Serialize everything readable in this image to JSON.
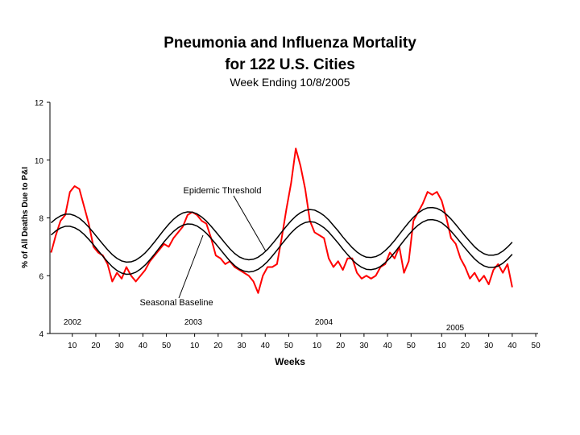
{
  "chart_data": {
    "type": "line",
    "title": [
      "Pneumonia and Influenza Mortality",
      "for 122 U.S. Cities"
    ],
    "subtitle": "Week Ending 10/8/2005",
    "x_label": "Weeks",
    "y_label": "% of All Deaths Due to P&I",
    "year_labels": [
      "2002",
      "2003",
      "2004",
      "2005"
    ],
    "x": [
      1,
      3,
      5,
      7,
      9,
      11,
      13,
      15,
      17,
      19,
      21,
      23,
      25,
      27,
      29,
      31,
      33,
      35,
      37,
      39,
      41,
      43,
      45,
      47,
      49,
      51,
      53,
      55,
      57,
      59,
      61,
      63,
      65,
      67,
      69,
      71,
      73,
      75,
      77,
      79,
      81,
      83,
      85,
      87,
      89,
      91,
      93,
      95,
      97,
      99,
      101,
      103,
      105,
      107,
      109,
      111,
      113,
      115,
      117,
      119,
      121,
      123,
      125,
      127,
      129,
      131,
      133,
      135,
      137,
      139,
      141,
      143,
      145,
      147,
      149,
      151,
      153,
      155,
      157,
      159,
      161,
      163,
      165,
      167,
      169,
      171,
      173,
      175,
      177,
      179,
      181,
      183,
      185,
      187,
      189,
      191,
      193,
      195,
      197
    ],
    "series": [
      {
        "color": "#ff0000",
        "values": [
          6.8,
          7.4,
          7.9,
          8.1,
          8.9,
          9.1,
          9.0,
          8.4,
          7.8,
          7.0,
          6.8,
          6.7,
          6.4,
          5.8,
          6.1,
          5.9,
          6.3,
          6.0,
          5.8,
          6.0,
          6.2,
          6.5,
          6.7,
          6.9,
          7.1,
          7.0,
          7.3,
          7.5,
          7.7,
          8.1,
          8.2,
          8.1,
          7.9,
          7.8,
          7.3,
          6.7,
          6.6,
          6.4,
          6.5,
          6.3,
          6.2,
          6.1,
          6.0,
          5.8,
          5.4,
          6.0,
          6.3,
          6.3,
          6.4,
          7.3,
          8.3,
          9.2,
          10.4,
          9.8,
          9.0,
          7.9,
          7.5,
          7.4,
          7.3,
          6.6,
          6.3,
          6.5,
          6.2,
          6.6,
          6.6,
          6.1,
          5.9,
          6.0,
          5.9,
          6.0,
          6.3,
          6.4,
          6.8,
          6.6,
          7.0,
          6.1,
          6.5,
          7.9,
          8.2,
          8.5,
          8.9,
          8.8,
          8.9,
          8.6,
          8.0,
          7.3,
          7.1,
          6.6,
          6.3,
          5.9,
          6.1,
          5.8,
          6.0,
          5.7,
          6.2,
          6.4,
          6.1,
          6.4,
          5.6
        ]
      },
      {
        "name": "Epidemic Threshold",
        "color": "#000000",
        "values": [
          7.83,
          7.97,
          8.07,
          8.13,
          8.13,
          8.08,
          7.99,
          7.85,
          7.68,
          7.49,
          7.29,
          7.09,
          6.9,
          6.73,
          6.6,
          6.51,
          6.47,
          6.48,
          6.54,
          6.65,
          6.79,
          6.97,
          7.17,
          7.38,
          7.59,
          7.78,
          7.95,
          8.08,
          8.17,
          8.21,
          8.2,
          8.14,
          8.03,
          7.89,
          7.71,
          7.52,
          7.32,
          7.12,
          6.93,
          6.77,
          6.65,
          6.58,
          6.55,
          6.57,
          6.64,
          6.76,
          6.91,
          7.1,
          7.3,
          7.51,
          7.71,
          7.9,
          8.06,
          8.18,
          8.26,
          8.29,
          8.27,
          8.19,
          8.08,
          7.93,
          7.74,
          7.55,
          7.34,
          7.15,
          6.97,
          6.82,
          6.71,
          6.64,
          6.63,
          6.66,
          6.74,
          6.87,
          7.03,
          7.22,
          7.43,
          7.64,
          7.84,
          8.02,
          8.17,
          8.28,
          8.35,
          8.36,
          8.33,
          8.25,
          8.12,
          7.96,
          7.77,
          7.57,
          7.37,
          7.18,
          7.0,
          6.86,
          6.76,
          6.71,
          6.71,
          6.75,
          6.85,
          6.99,
          7.16
        ]
      },
      {
        "name": "Seasonal Baseline",
        "color": "#000000",
        "values": [
          7.41,
          7.55,
          7.65,
          7.71,
          7.71,
          7.66,
          7.57,
          7.43,
          7.26,
          7.07,
          6.87,
          6.67,
          6.48,
          6.31,
          6.18,
          6.09,
          6.05,
          6.06,
          6.12,
          6.23,
          6.37,
          6.55,
          6.75,
          6.96,
          7.17,
          7.36,
          7.53,
          7.66,
          7.75,
          7.79,
          7.78,
          7.72,
          7.61,
          7.47,
          7.29,
          7.1,
          6.9,
          6.7,
          6.51,
          6.35,
          6.23,
          6.16,
          6.13,
          6.15,
          6.22,
          6.34,
          6.49,
          6.68,
          6.88,
          7.09,
          7.29,
          7.48,
          7.64,
          7.76,
          7.84,
          7.87,
          7.85,
          7.77,
          7.66,
          7.51,
          7.32,
          7.13,
          6.92,
          6.73,
          6.55,
          6.4,
          6.29,
          6.22,
          6.21,
          6.24,
          6.32,
          6.45,
          6.61,
          6.8,
          7.01,
          7.22,
          7.42,
          7.6,
          7.75,
          7.86,
          7.93,
          7.94,
          7.91,
          7.83,
          7.7,
          7.54,
          7.35,
          7.15,
          6.95,
          6.76,
          6.58,
          6.44,
          6.34,
          6.29,
          6.29,
          6.33,
          6.43,
          6.57,
          6.74
        ]
      }
    ],
    "xlim": [
      0.5,
      208
    ],
    "xticks": [
      {
        "value": 10,
        "label": "10"
      },
      {
        "value": 20,
        "label": "20"
      },
      {
        "value": 30,
        "label": "30"
      },
      {
        "value": 40,
        "label": "40"
      },
      {
        "value": 50,
        "label": "50"
      },
      {
        "value": 62,
        "label": "10"
      },
      {
        "value": 72,
        "label": "20"
      },
      {
        "value": 82,
        "label": "30"
      },
      {
        "value": 92,
        "label": "40"
      },
      {
        "value": 102,
        "label": "50"
      },
      {
        "value": 114,
        "label": "10"
      },
      {
        "value": 124,
        "label": "20"
      },
      {
        "value": 134,
        "label": "30"
      },
      {
        "value": 144,
        "label": "40"
      },
      {
        "value": 154,
        "label": "50"
      },
      {
        "value": 167,
        "label": "10"
      },
      {
        "value": 177,
        "label": "20"
      },
      {
        "value": 187,
        "label": "30"
      },
      {
        "value": 197,
        "label": "40"
      },
      {
        "value": 207,
        "label": "50"
      }
    ],
    "ylim": [
      4,
      12
    ],
    "yticks": [
      4,
      6,
      8,
      10,
      12
    ],
    "grid": false
  }
}
